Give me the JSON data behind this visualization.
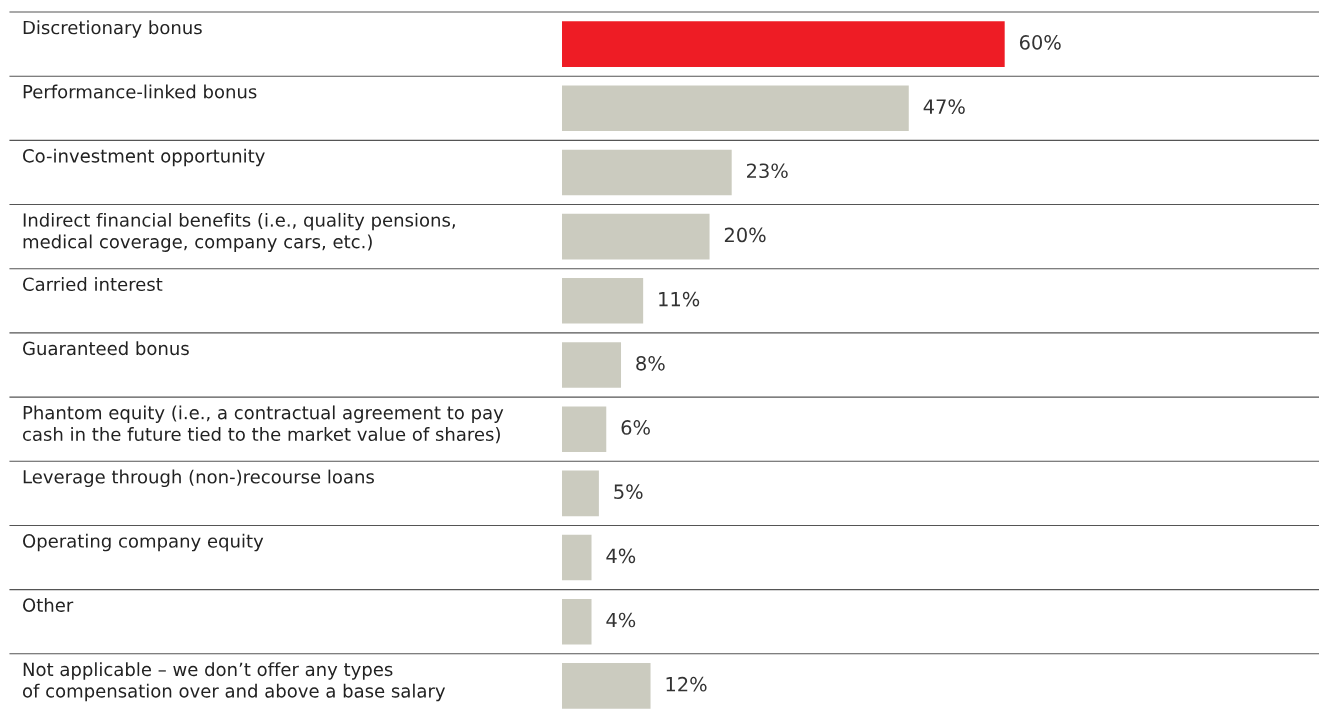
{
  "chart_data": {
    "type": "bar",
    "orientation": "horizontal",
    "categories": [
      "Discretionary bonus",
      "Performance-linked bonus",
      "Co-investment opportunity",
      "Indirect financial benefits (i.e., quality pensions,\nmedical coverage, company cars, etc.)",
      "Carried interest",
      "Guaranteed bonus",
      "Phantom equity (i.e., a contractual agreement to pay\ncash in the future tied to the market value of shares)",
      "Leverage through (non-)recourse loans",
      "Operating company equity",
      "Other",
      "Not applicable – we don’t offer any types\nof compensation over and above a base salary"
    ],
    "values": [
      60,
      47,
      23,
      20,
      11,
      8,
      6,
      5,
      4,
      4,
      12
    ],
    "colors": [
      "#ee1c25",
      "#cbcbbf",
      "#cbcbbf",
      "#cbcbbf",
      "#cbcbbf",
      "#cbcbbf",
      "#cbcbbf",
      "#cbcbbf",
      "#cbcbbf",
      "#cbcbbf",
      "#cbcbbf"
    ],
    "value_labels": [
      "60%",
      "47%",
      "23%",
      "20%",
      "11%",
      "8%",
      "6%",
      "5%",
      "4%",
      "4%",
      "12%"
    ],
    "grid": true
  }
}
